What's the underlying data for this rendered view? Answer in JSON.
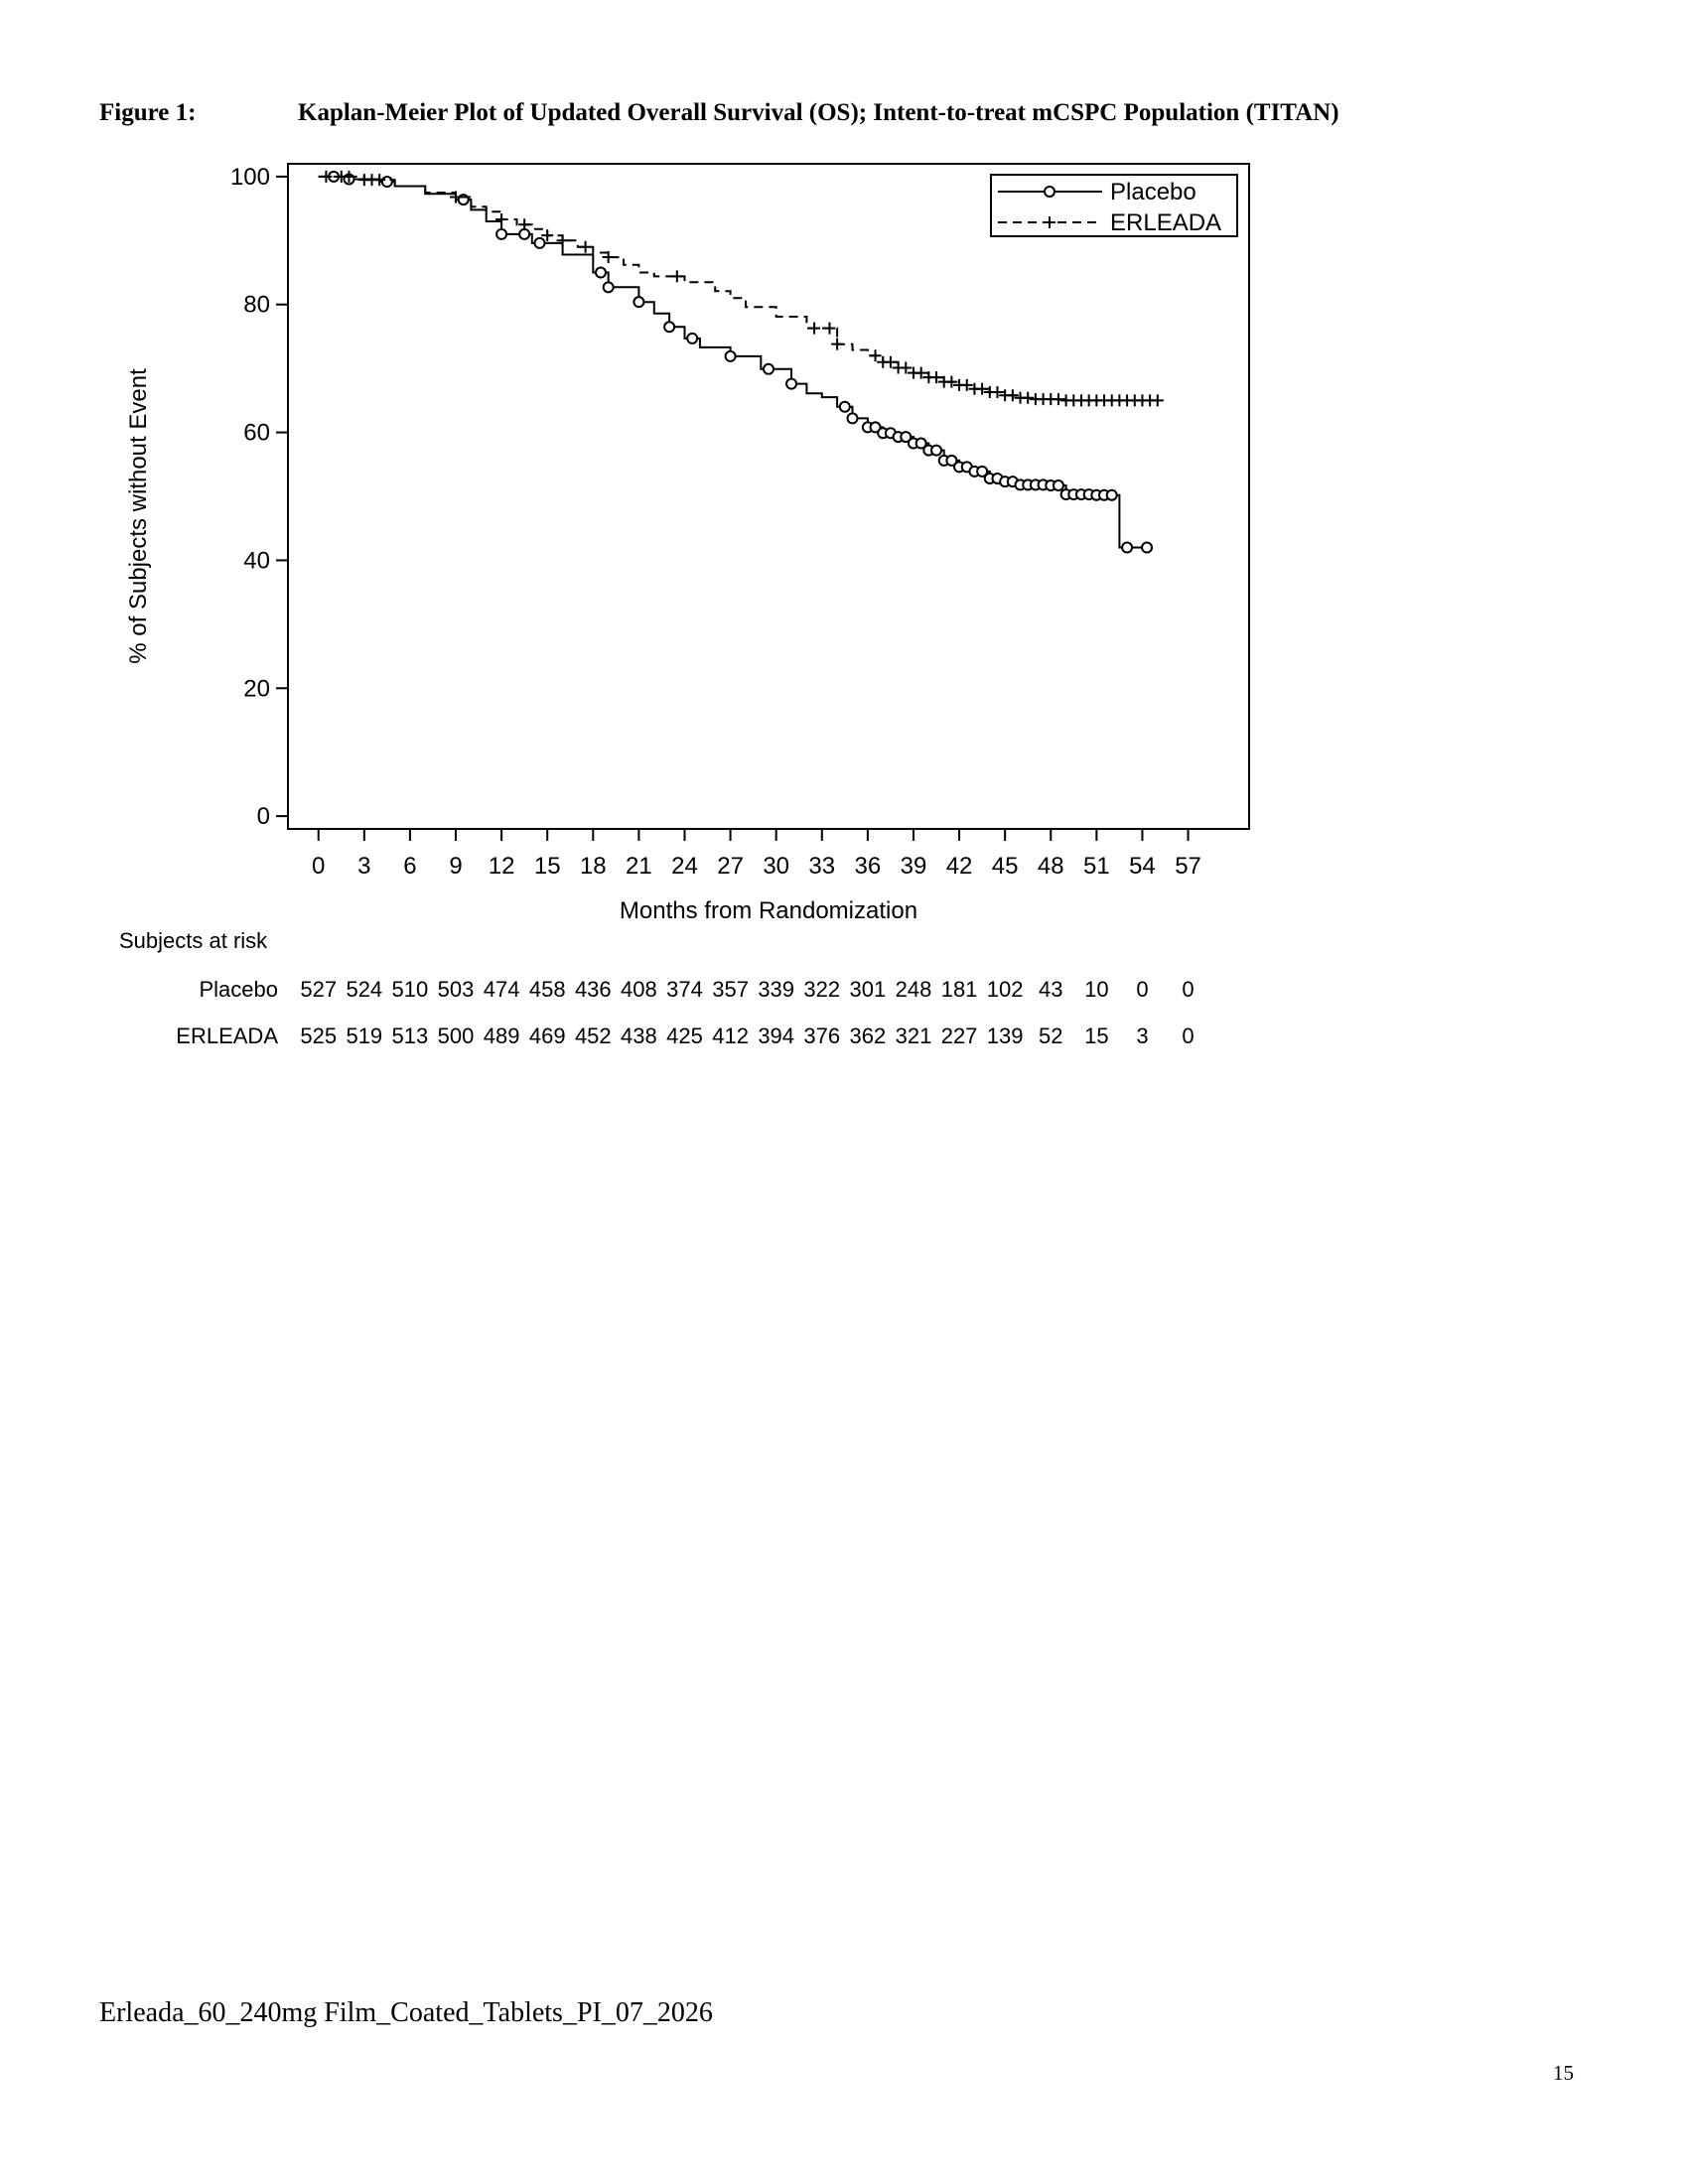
{
  "figure": {
    "label": "Figure 1:",
    "title": "Kaplan-Meier Plot of Updated Overall Survival (OS); Intent-to-treat mCSPC Population (TITAN)"
  },
  "chart_data": {
    "type": "line",
    "subtype": "kaplan-meier",
    "xlabel": "Months from Randomization",
    "ylabel": "% of Subjects without Event",
    "xlim": [
      -2,
      61
    ],
    "ylim": [
      -2,
      102
    ],
    "xticks": [
      0,
      3,
      6,
      9,
      12,
      15,
      18,
      21,
      24,
      27,
      30,
      33,
      36,
      39,
      42,
      45,
      48,
      51,
      54,
      57
    ],
    "yticks": [
      0,
      20,
      40,
      60,
      80,
      100
    ],
    "grid": false,
    "legend_position": "top-right",
    "series": [
      {
        "name": "Placebo",
        "line_style": "solid",
        "censor_marker": "circle",
        "points": [
          [
            0,
            100
          ],
          [
            2,
            99.6
          ],
          [
            4,
            99.2
          ],
          [
            5,
            98.5
          ],
          [
            7,
            97.3
          ],
          [
            9,
            96.4
          ],
          [
            10,
            94.8
          ],
          [
            11,
            93
          ],
          [
            12,
            91
          ],
          [
            14,
            89.6
          ],
          [
            16,
            87.8
          ],
          [
            18,
            85
          ],
          [
            19,
            82.7
          ],
          [
            21,
            80.4
          ],
          [
            22,
            78.6
          ],
          [
            23,
            76.5
          ],
          [
            24,
            74.7
          ],
          [
            25,
            73.3
          ],
          [
            27,
            71.9
          ],
          [
            29,
            69.9
          ],
          [
            31,
            67.6
          ],
          [
            32,
            66.1
          ],
          [
            33,
            65.5
          ],
          [
            34,
            64
          ],
          [
            35,
            62.2
          ],
          [
            36,
            60.8
          ],
          [
            37,
            59.9
          ],
          [
            38,
            59.3
          ],
          [
            39,
            58.3
          ],
          [
            40,
            57.2
          ],
          [
            41,
            55.6
          ],
          [
            42,
            54.6
          ],
          [
            43,
            53.9
          ],
          [
            44,
            52.8
          ],
          [
            45,
            52.3
          ],
          [
            46,
            51.8
          ],
          [
            48,
            51.7
          ],
          [
            49,
            50.3
          ],
          [
            51,
            50.2
          ],
          [
            52.5,
            50.2
          ],
          [
            52.5,
            42
          ],
          [
            54.5,
            42
          ]
        ],
        "censor_times": [
          1,
          2,
          4.5,
          9.5,
          12,
          13.5,
          14.5,
          18.5,
          19,
          21,
          23,
          24.5,
          27,
          29.5,
          31,
          34.5,
          35,
          36,
          36.5,
          37,
          37.5,
          38,
          38.5,
          39,
          39.5,
          40,
          40.5,
          41,
          41.5,
          42,
          42.5,
          43,
          43.5,
          44,
          44.5,
          45,
          45.5,
          46,
          46.5,
          47,
          47.5,
          48,
          48.5,
          49,
          49.5,
          50,
          50.5,
          51,
          51.5,
          52,
          53,
          54.3
        ]
      },
      {
        "name": "ERLEADA",
        "line_style": "dashed",
        "censor_marker": "plus",
        "points": [
          [
            0,
            100
          ],
          [
            3,
            99.5
          ],
          [
            5,
            98.5
          ],
          [
            7,
            97.5
          ],
          [
            9,
            96.8
          ],
          [
            10,
            95.3
          ],
          [
            11,
            94.5
          ],
          [
            12,
            93.3
          ],
          [
            13,
            92.5
          ],
          [
            14,
            91.8
          ],
          [
            15,
            90.8
          ],
          [
            16,
            90
          ],
          [
            17,
            89
          ],
          [
            18,
            88.1
          ],
          [
            19,
            87.4
          ],
          [
            20,
            86.2
          ],
          [
            21,
            85
          ],
          [
            22,
            84.4
          ],
          [
            24,
            83.5
          ],
          [
            26,
            82.1
          ],
          [
            27,
            81
          ],
          [
            28,
            79.6
          ],
          [
            30,
            78.1
          ],
          [
            32,
            76.3
          ],
          [
            34,
            73.8
          ],
          [
            35,
            72.9
          ],
          [
            36,
            72
          ],
          [
            37,
            71
          ],
          [
            38,
            70.1
          ],
          [
            39,
            69.3
          ],
          [
            40,
            68.6
          ],
          [
            41,
            67.9
          ],
          [
            42,
            67.4
          ],
          [
            43,
            66.8
          ],
          [
            44,
            66.3
          ],
          [
            45,
            65.8
          ],
          [
            46,
            65.4
          ],
          [
            47,
            65.2
          ],
          [
            49,
            65
          ],
          [
            55,
            65
          ]
        ],
        "censor_times": [
          0.5,
          1.5,
          2,
          3,
          3.5,
          4,
          9,
          12,
          13.5,
          15,
          16,
          17.5,
          19,
          23.5,
          32.5,
          33.5,
          34,
          36.5,
          37,
          37.5,
          38,
          38.5,
          39,
          39.5,
          40,
          40.5,
          41,
          41.5,
          42,
          42.5,
          43,
          43.5,
          44,
          44.5,
          45,
          45.5,
          46,
          46.5,
          47,
          47.5,
          48,
          48.5,
          49,
          49.5,
          50,
          50.5,
          51,
          51.5,
          52,
          52.5,
          53,
          53.5,
          54,
          54.5,
          55
        ]
      }
    ],
    "risk_table": {
      "title": "Subjects at risk",
      "rows": [
        {
          "label": "Placebo",
          "values": [
            "527",
            "524",
            "510",
            "503",
            "474",
            "458",
            "436",
            "408",
            "374",
            "357",
            "339",
            "322",
            "301",
            "248",
            "181",
            "102",
            "43",
            "10",
            "0",
            "0"
          ]
        },
        {
          "label": "ERLEADA",
          "values": [
            "525",
            "519",
            "513",
            "500",
            "489",
            "469",
            "452",
            "438",
            "425",
            "412",
            "394",
            "376",
            "362",
            "321",
            "227",
            "139",
            "52",
            "15",
            "3",
            "0"
          ]
        }
      ]
    }
  },
  "footer": {
    "document_name": "Erleada_60_240mg Film_Coated_Tablets_PI_07_2026",
    "page_number": "15"
  }
}
